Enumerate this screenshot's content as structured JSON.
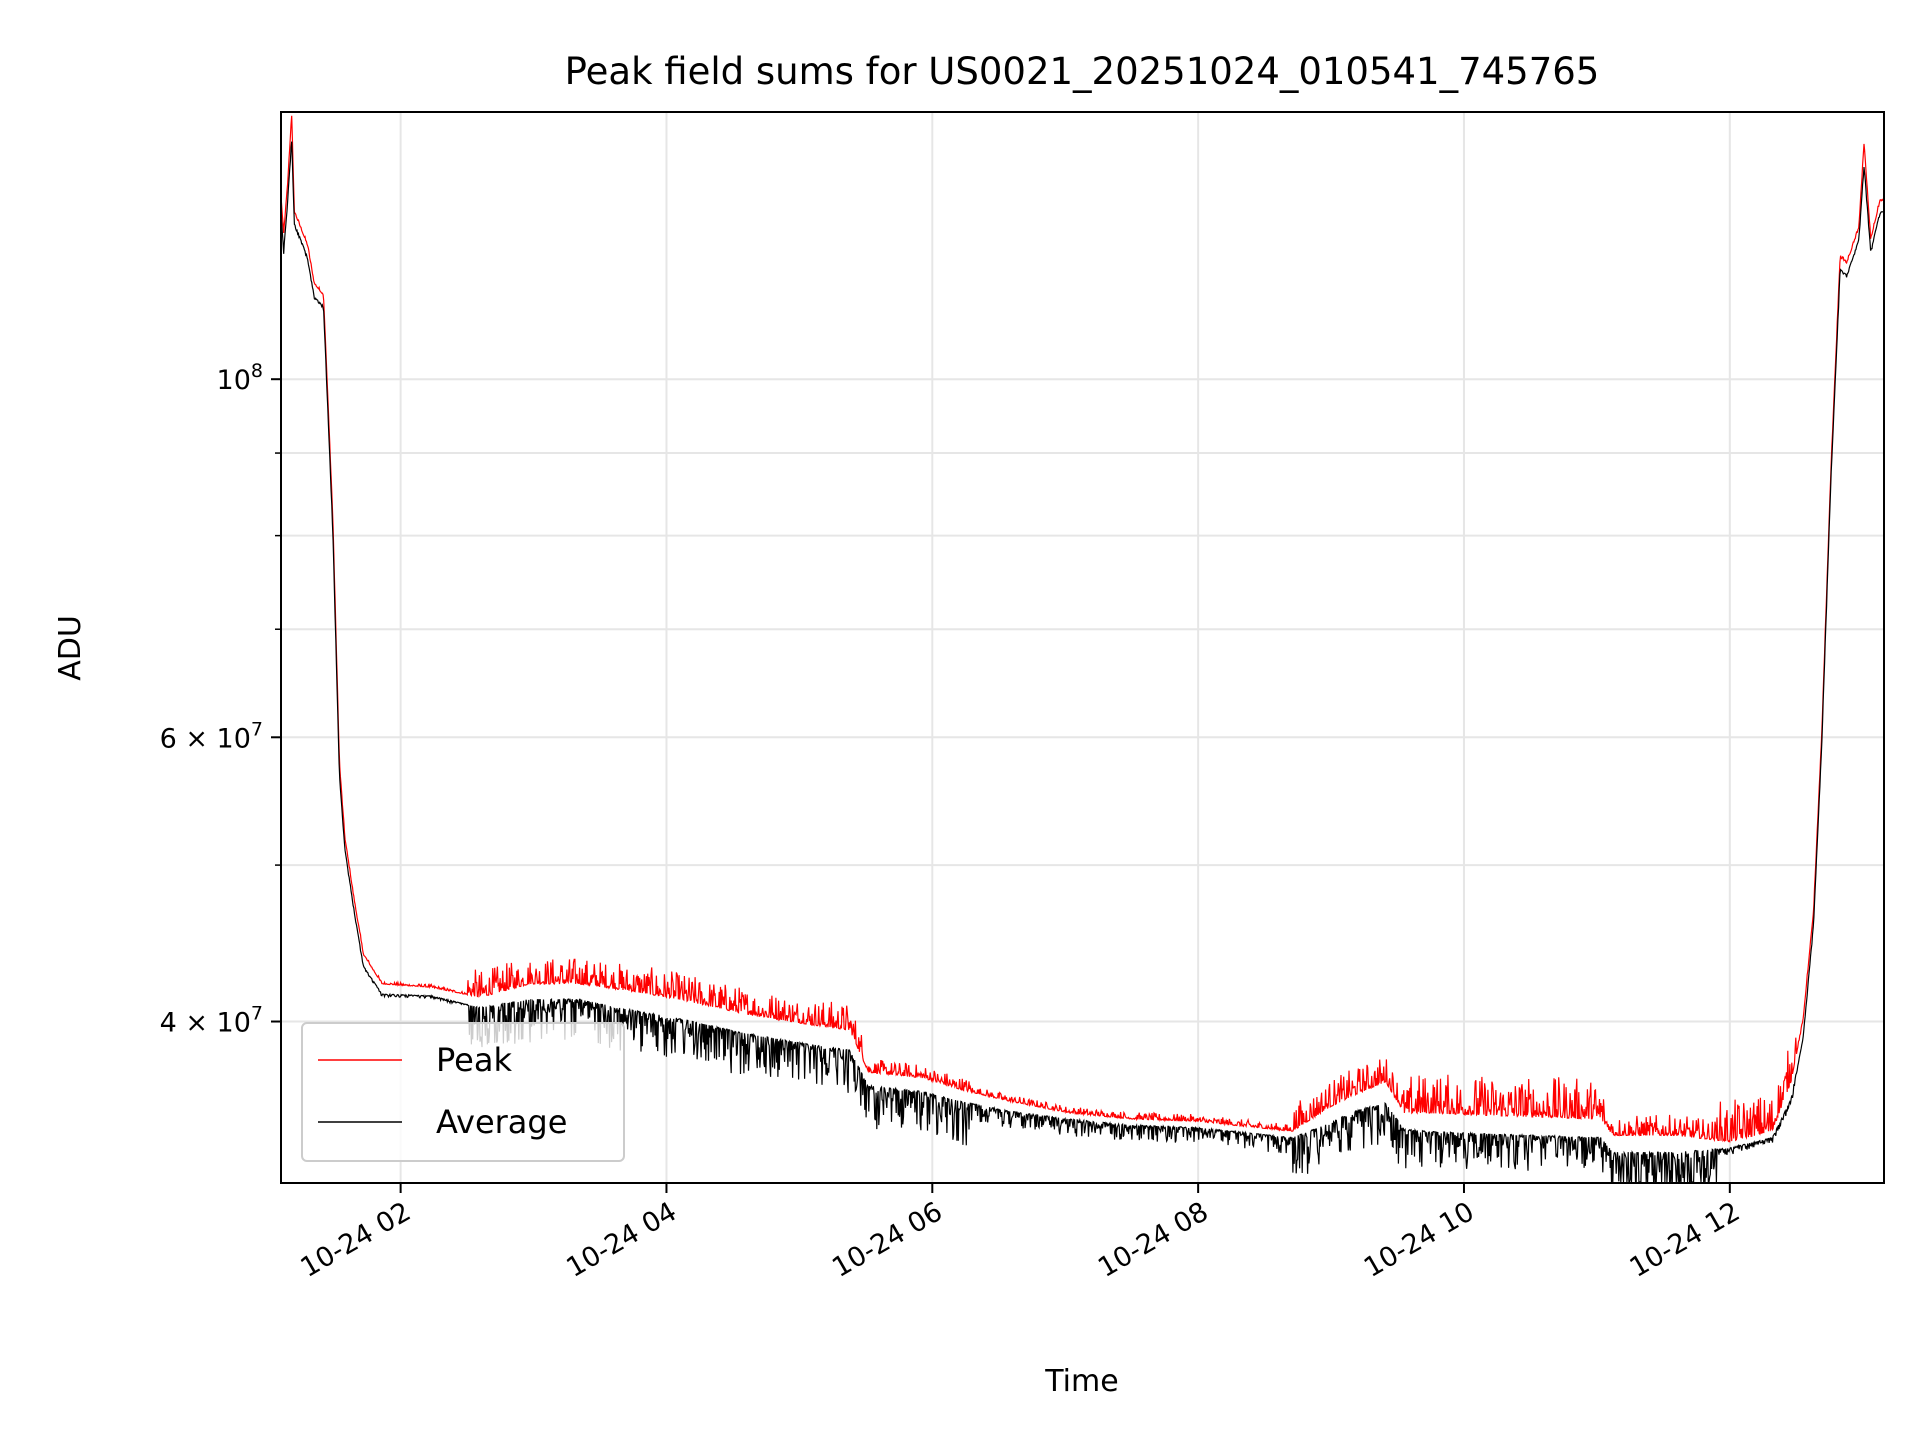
{
  "chart_data": {
    "type": "line",
    "title": "Peak field sums for US0021_20251024_010541_745765",
    "xlabel": "Time",
    "ylabel": "ADU",
    "yscale": "log",
    "xlim_hours": [
      1.1,
      13.16
    ],
    "ylim": [
      31770000,
      146400000
    ],
    "grid": true,
    "legend_position": "lower-left",
    "x_ticks": [
      {
        "hour": 2,
        "label": "10-24 02"
      },
      {
        "hour": 4,
        "label": "10-24 04"
      },
      {
        "hour": 6,
        "label": "10-24 06"
      },
      {
        "hour": 8,
        "label": "10-24 08"
      },
      {
        "hour": 10,
        "label": "10-24 10"
      },
      {
        "hour": 12,
        "label": "10-24 12"
      }
    ],
    "y_major_ticks": [
      {
        "value": 100000000,
        "mantissa": "",
        "exp": "8"
      },
      {
        "value": 60000000,
        "mantissa": "6",
        "exp": "7"
      },
      {
        "value": 40000000,
        "mantissa": "4",
        "exp": "7"
      }
    ],
    "y_minor_ticks": [
      90000000,
      80000000,
      70000000,
      50000000
    ],
    "noise_bands": [
      {
        "from": 2.5,
        "to": 5.5,
        "peak": 0.02,
        "avg": 0.03
      },
      {
        "from": 5.5,
        "to": 6.3,
        "peak": 0.01,
        "avg": 0.03
      },
      {
        "from": 6.3,
        "to": 8.7,
        "peak": 0.005,
        "avg": 0.012
      },
      {
        "from": 8.7,
        "to": 9.6,
        "peak": 0.02,
        "avg": 0.03
      },
      {
        "from": 9.6,
        "to": 11.05,
        "peak": 0.03,
        "avg": 0.025
      },
      {
        "from": 11.05,
        "to": 11.9,
        "peak": 0.015,
        "avg": 0.06
      },
      {
        "from": 11.9,
        "to": 12.5,
        "peak": 0.03,
        "avg": 0.005
      }
    ],
    "series": [
      {
        "name": "Peak",
        "color": "#ff0000",
        "points": [
          [
            1.1,
            129700000
          ],
          [
            1.12,
            123000000
          ],
          [
            1.15,
            132000000
          ],
          [
            1.18,
            146000000
          ],
          [
            1.2,
            127000000
          ],
          [
            1.3,
            121000000
          ],
          [
            1.35,
            114600000
          ],
          [
            1.42,
            112700000
          ],
          [
            1.49,
            82000000
          ],
          [
            1.54,
            57800000
          ],
          [
            1.58,
            52000000
          ],
          [
            1.65,
            47600000
          ],
          [
            1.72,
            44000000
          ],
          [
            1.86,
            42200000
          ],
          [
            2.23,
            42000000
          ],
          [
            2.6,
            41400000
          ],
          [
            2.97,
            42200000
          ],
          [
            3.34,
            42200000
          ],
          [
            3.71,
            41800000
          ],
          [
            4.08,
            41300000
          ],
          [
            4.55,
            40500000
          ],
          [
            5.01,
            39900000
          ],
          [
            5.38,
            39500000
          ],
          [
            5.52,
            37200000
          ],
          [
            5.93,
            36900000
          ],
          [
            6.21,
            36300000
          ],
          [
            6.58,
            35700000
          ],
          [
            7.04,
            35100000
          ],
          [
            7.51,
            34800000
          ],
          [
            7.97,
            34700000
          ],
          [
            8.71,
            34200000
          ],
          [
            8.99,
            35400000
          ],
          [
            9.17,
            36000000
          ],
          [
            9.41,
            36700000
          ],
          [
            9.55,
            35100000
          ],
          [
            9.73,
            35100000
          ],
          [
            10.1,
            35000000
          ],
          [
            11.03,
            34800000
          ],
          [
            11.12,
            34000000
          ],
          [
            11.58,
            34000000
          ],
          [
            12.0,
            33700000
          ],
          [
            12.32,
            34200000
          ],
          [
            12.46,
            36700000
          ],
          [
            12.55,
            40000000
          ],
          [
            12.63,
            46800000
          ],
          [
            12.69,
            59800000
          ],
          [
            12.76,
            87600000
          ],
          [
            12.83,
            119000000
          ],
          [
            12.88,
            118000000
          ],
          [
            12.97,
            124000000
          ],
          [
            13.01,
            140000000
          ],
          [
            13.06,
            122000000
          ],
          [
            13.13,
            129000000
          ],
          [
            13.16,
            129000000
          ]
        ]
      },
      {
        "name": "Average",
        "color": "#000000",
        "points": [
          [
            1.1,
            127000000
          ],
          [
            1.12,
            120000000
          ],
          [
            1.15,
            129000000
          ],
          [
            1.18,
            141000000
          ],
          [
            1.2,
            125000000
          ],
          [
            1.3,
            119000000
          ],
          [
            1.35,
            112500000
          ],
          [
            1.42,
            111000000
          ],
          [
            1.49,
            80500000
          ],
          [
            1.54,
            56800000
          ],
          [
            1.58,
            51200000
          ],
          [
            1.65,
            46900000
          ],
          [
            1.72,
            43300000
          ],
          [
            1.86,
            41600000
          ],
          [
            2.23,
            41500000
          ],
          [
            2.6,
            40800000
          ],
          [
            2.97,
            41300000
          ],
          [
            3.34,
            41300000
          ],
          [
            3.71,
            40700000
          ],
          [
            4.08,
            40200000
          ],
          [
            4.55,
            39400000
          ],
          [
            5.01,
            38800000
          ],
          [
            5.38,
            38400000
          ],
          [
            5.52,
            36500000
          ],
          [
            5.93,
            36200000
          ],
          [
            6.21,
            35700000
          ],
          [
            6.58,
            35200000
          ],
          [
            7.04,
            34800000
          ],
          [
            7.51,
            34500000
          ],
          [
            7.97,
            34400000
          ],
          [
            8.71,
            33900000
          ],
          [
            8.99,
            34600000
          ],
          [
            9.17,
            35200000
          ],
          [
            9.41,
            35600000
          ],
          [
            9.55,
            34300000
          ],
          [
            9.73,
            34200000
          ],
          [
            10.1,
            34100000
          ],
          [
            11.03,
            33900000
          ],
          [
            11.12,
            33200000
          ],
          [
            11.58,
            33200000
          ],
          [
            12.0,
            33400000
          ],
          [
            12.32,
            33900000
          ],
          [
            12.46,
            35800000
          ],
          [
            12.55,
            39000000
          ],
          [
            12.63,
            46000000
          ],
          [
            12.69,
            59000000
          ],
          [
            12.76,
            86500000
          ],
          [
            12.83,
            117000000
          ],
          [
            12.88,
            116000000
          ],
          [
            12.97,
            122000000
          ],
          [
            13.01,
            136000000
          ],
          [
            13.06,
            120000000
          ],
          [
            13.13,
            127000000
          ],
          [
            13.16,
            127000000
          ]
        ]
      }
    ]
  }
}
